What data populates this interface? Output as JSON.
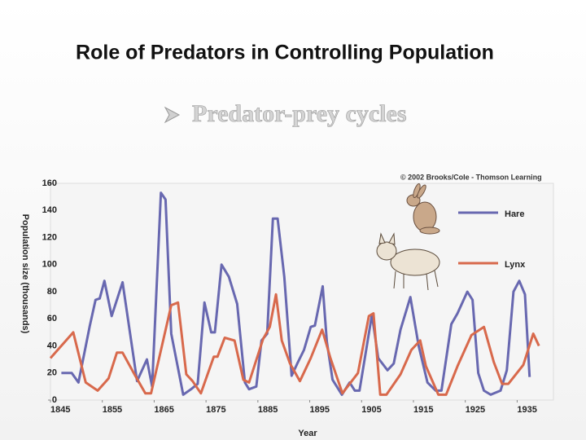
{
  "chart_data": {
    "type": "line",
    "title": "Role of Predators in Controlling Population",
    "subtitle": "Predator-prey cycles",
    "credit": "© 2002 Brooks/Cole - Thomson Learning",
    "x_label": "Year",
    "y_label": "Population size (thousands)",
    "xlim": [
      1845,
      1942
    ],
    "ylim": [
      0,
      160
    ],
    "xticks": [
      1845,
      1855,
      1865,
      1875,
      1885,
      1895,
      1905,
      1915,
      1925,
      1935
    ],
    "yticks": [
      0,
      20,
      40,
      60,
      80,
      100,
      120,
      140,
      160
    ],
    "series": [
      {
        "name": "Hare",
        "color": "#6868b0",
        "x": [
          1847.1,
          1849.1,
          1850.4,
          1852.6,
          1853.7,
          1854.5,
          1855.4,
          1856.8,
          1858.9,
          1861.7,
          1863.6,
          1864.6,
          1866.3,
          1867.2,
          1868.3,
          1870.6,
          1872.1,
          1873.4,
          1874.7,
          1876,
          1876.7,
          1878,
          1879.4,
          1881,
          1882.5,
          1883.3,
          1884.7,
          1885.7,
          1886.8,
          1887.9,
          1888.8,
          1890.1,
          1891.5,
          1892.6,
          1893.9,
          1895.2,
          1896,
          1897.5,
          1898.3,
          1899.4,
          1901.2,
          1902.7,
          1903.7,
          1904.6,
          1907,
          1908.2,
          1910,
          1911.2,
          1912.5,
          1914.4,
          1916,
          1917.7,
          1919.3,
          1920.4,
          1922.3,
          1923.5,
          1925.4,
          1926.4,
          1927.5,
          1928.6,
          1929.9,
          1931.8,
          1933,
          1934.3,
          1935.4,
          1936.5,
          1937.4
        ],
        "values": [
          20,
          20,
          13,
          55,
          74,
          75,
          88,
          62,
          87,
          14,
          30,
          10,
          153,
          148,
          49,
          4,
          8,
          12,
          72,
          50,
          50,
          100,
          91,
          71,
          13,
          8,
          10,
          44,
          49,
          134,
          134,
          91,
          18,
          27,
          37,
          54,
          55,
          84,
          43,
          15,
          4,
          13,
          7,
          7,
          63,
          31,
          22,
          27,
          52,
          76,
          40,
          13,
          7,
          7,
          56,
          64,
          80,
          74,
          20,
          7,
          4,
          7,
          22,
          80,
          88,
          78,
          17
        ]
      },
      {
        "name": "Lynx",
        "color": "#d8694c",
        "x": [
          1845,
          1849.4,
          1851.8,
          1854.1,
          1856.2,
          1857.8,
          1858.9,
          1861.2,
          1863.3,
          1864.4,
          1868.3,
          1869.6,
          1871.2,
          1872.4,
          1874,
          1876.5,
          1877.2,
          1878.6,
          1880.5,
          1882.2,
          1883.3,
          1886,
          1887.3,
          1888.5,
          1889.6,
          1891.2,
          1893.1,
          1895.2,
          1897.4,
          1899,
          1901.3,
          1904.3,
          1906.4,
          1907.3,
          1908.6,
          1909.8,
          1912.5,
          1914.6,
          1916.3,
          1917.4,
          1919.8,
          1921.3,
          1923.5,
          1926.2,
          1928.6,
          1930.5,
          1932.1,
          1933.3,
          1936.2,
          1938.1,
          1939.2
        ],
        "values": [
          31,
          50,
          13,
          7,
          16,
          35,
          35,
          19,
          5,
          5,
          70,
          72,
          19,
          14,
          5,
          32,
          32,
          46,
          44,
          15,
          13,
          45,
          54,
          78,
          44,
          27,
          14,
          31,
          52,
          31,
          5,
          20,
          62,
          64,
          4,
          4,
          19,
          37,
          44,
          25,
          4,
          4,
          25,
          48,
          54,
          28,
          12,
          12,
          26,
          49,
          40
        ]
      }
    ]
  }
}
